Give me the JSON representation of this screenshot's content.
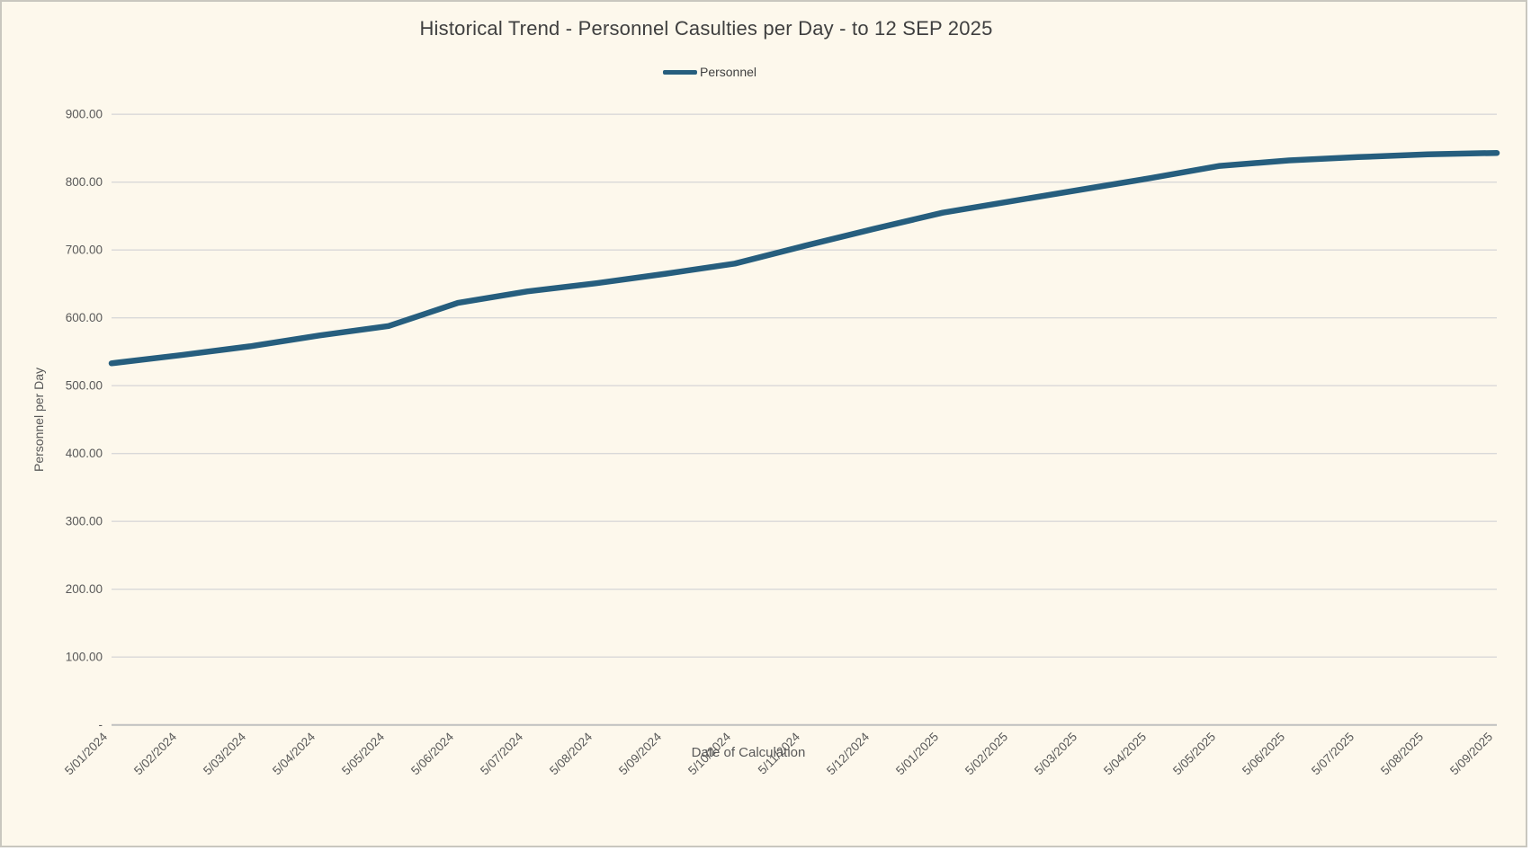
{
  "window": {
    "background_color": "#fdf8ec",
    "border_color": "#c9c7bf"
  },
  "chart_data": {
    "type": "line",
    "title": "Historical Trend - Personnel Casulties per Day - to 12 SEP 2025",
    "xlabel": "Date of Calculation",
    "ylabel": "Personnel per Day",
    "ylim": [
      0,
      900
    ],
    "ytick_step": 100,
    "ytick_labels": [
      "-",
      "100.00",
      "200.00",
      "300.00",
      "400.00",
      "500.00",
      "600.00",
      "700.00",
      "800.00",
      "900.00"
    ],
    "grid": true,
    "legend_position": "top-center",
    "categories": [
      "5/01/2024",
      "5/02/2024",
      "5/03/2024",
      "5/04/2024",
      "5/05/2024",
      "5/06/2024",
      "5/07/2024",
      "5/08/2024",
      "5/09/2024",
      "5/10/2024",
      "5/11/2024",
      "5/12/2024",
      "5/01/2025",
      "5/02/2025",
      "5/03/2025",
      "5/04/2025",
      "5/05/2025",
      "5/06/2025",
      "5/07/2025",
      "5/08/2025",
      "5/09/2025"
    ],
    "series": [
      {
        "name": "Personnel",
        "color": "#265e7e",
        "values": [
          533,
          545,
          558,
          574,
          588,
          622,
          639,
          651,
          665,
          680,
          706,
          731,
          755,
          772,
          789,
          806,
          824,
          832,
          837,
          841,
          843
        ]
      }
    ]
  },
  "style": {
    "gridline_color": "#d9d9d9",
    "axisline_color": "#bfbfbf",
    "tick_text_color": "#595959",
    "title_text_color": "#3f3f3f"
  }
}
